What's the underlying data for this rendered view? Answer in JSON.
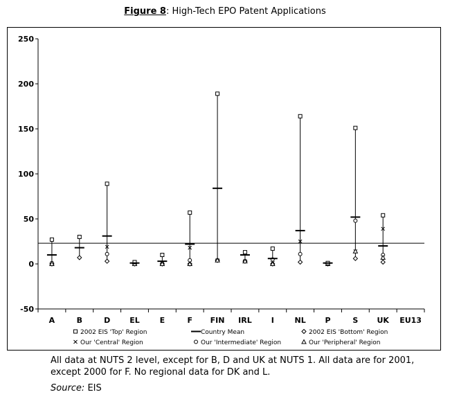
{
  "title": {
    "figure": "Figure 8",
    "colon": ":",
    "text": " High-Tech EPO Patent Applications"
  },
  "chart_data": {
    "type": "range",
    "categories": [
      "A",
      "B",
      "D",
      "EL",
      "E",
      "F",
      "FIN",
      "IRL",
      "I",
      "NL",
      "P",
      "S",
      "UK",
      "EU13"
    ],
    "ylim": [
      -50,
      250
    ],
    "yticks": [
      "250",
      "200",
      "150",
      "100",
      "50",
      "0",
      "-50"
    ],
    "reference_line": {
      "value": 23
    },
    "series": [
      {
        "name": "2002 EIS 'Top' Region",
        "marker": "square",
        "values": [
          27,
          30,
          89,
          2,
          10,
          57,
          189,
          13,
          17,
          164,
          1,
          151,
          54,
          null
        ]
      },
      {
        "name": "Country Mean",
        "marker": "dash",
        "values": [
          10,
          18,
          31,
          1,
          3,
          22,
          84,
          10,
          6,
          37,
          1,
          52,
          20,
          null
        ]
      },
      {
        "name": "2002 EIS 'Bottom' Region",
        "marker": "diamond",
        "values": [
          0,
          7,
          3,
          0,
          0,
          0,
          4,
          3,
          0,
          2,
          0,
          6,
          2,
          null
        ]
      },
      {
        "name": "Our 'Central' Region",
        "marker": "x",
        "values": [
          0,
          null,
          19,
          0,
          0,
          18,
          4,
          3,
          1,
          25,
          0,
          14,
          39,
          null
        ]
      },
      {
        "name": "Our 'Intermediate' Region",
        "marker": "circle",
        "values": [
          1,
          null,
          11,
          0,
          0,
          4,
          4,
          3,
          5,
          11,
          0,
          48,
          10,
          null
        ]
      },
      {
        "name": "Our 'Peripheral' Region",
        "marker": "triangle",
        "values": [
          0,
          null,
          null,
          0,
          0,
          0,
          4,
          3,
          0,
          null,
          0,
          14,
          7,
          null
        ]
      }
    ]
  },
  "notes": "All data at NUTS 2 level, except for B, D and UK at NUTS 1. All data are for 2001, except 2000 for F. No regional data for DK and L.",
  "source": {
    "label": "Source:",
    "value": " EIS"
  }
}
